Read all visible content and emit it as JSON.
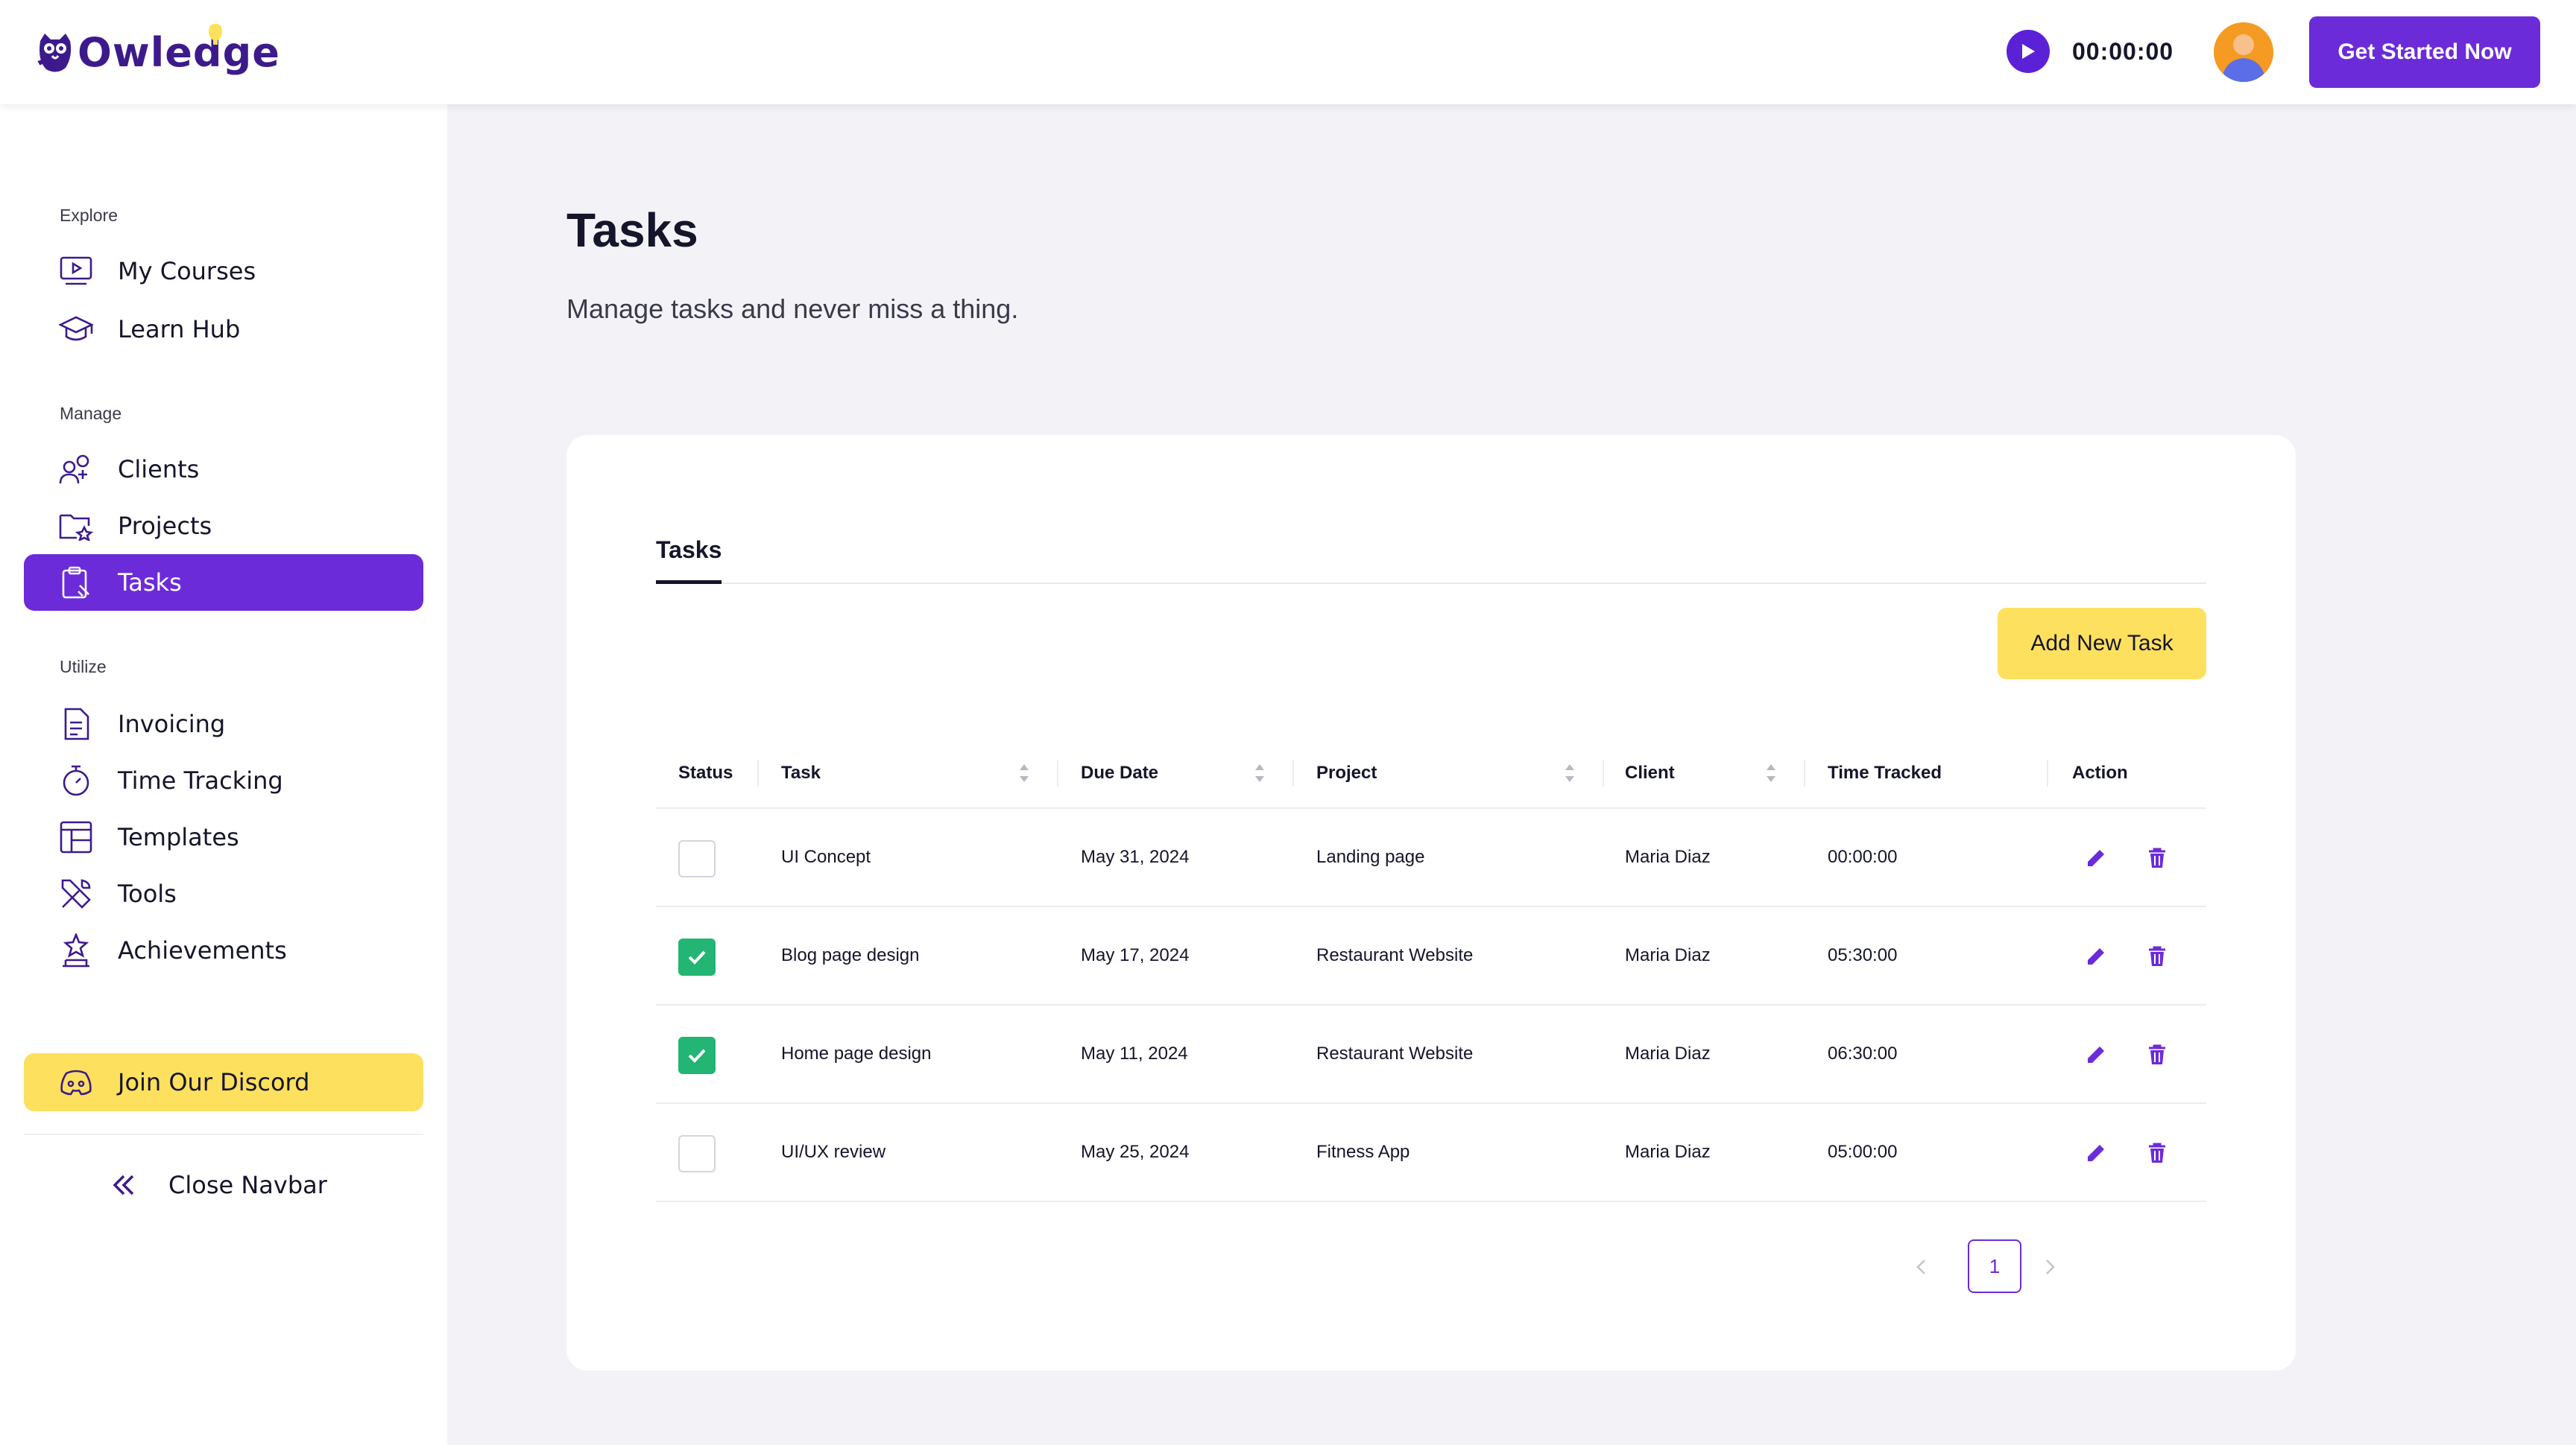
{
  "header": {
    "logo_text": "Owledge",
    "timer": "00:00:00",
    "cta_label": "Get Started Now"
  },
  "sidebar": {
    "sections": [
      {
        "title": "Explore",
        "items": [
          {
            "label": "My Courses",
            "icon": "play-screen-icon"
          },
          {
            "label": "Learn Hub",
            "icon": "graduation-cap-icon"
          }
        ]
      },
      {
        "title": "Manage",
        "items": [
          {
            "label": "Clients",
            "icon": "users-plus-icon"
          },
          {
            "label": "Projects",
            "icon": "folder-star-icon"
          },
          {
            "label": "Tasks",
            "icon": "clipboard-icon",
            "active": true
          }
        ]
      },
      {
        "title": "Utilize",
        "items": [
          {
            "label": "Invoicing",
            "icon": "document-icon"
          },
          {
            "label": "Time Tracking",
            "icon": "stopwatch-icon"
          },
          {
            "label": "Templates",
            "icon": "template-grid-icon"
          },
          {
            "label": "Tools",
            "icon": "tools-icon"
          },
          {
            "label": "Achievements",
            "icon": "trophy-star-icon"
          }
        ]
      }
    ],
    "discord_label": "Join Our Discord",
    "close_label": "Close Navbar"
  },
  "main": {
    "title": "Tasks",
    "subtitle": "Manage tasks and never miss a thing.",
    "tab_label": "Tasks",
    "add_button": "Add New Task",
    "columns": [
      "Status",
      "Task",
      "Due Date",
      "Project",
      "Client",
      "Time Tracked",
      "Action"
    ],
    "rows": [
      {
        "done": false,
        "task": "UI Concept",
        "due": "May 31, 2024",
        "project": "Landing page",
        "client": "Maria Diaz",
        "time": "00:00:00"
      },
      {
        "done": true,
        "task": "Blog page design",
        "due": "May 17, 2024",
        "project": "Restaurant Website",
        "client": "Maria Diaz",
        "time": "05:30:00"
      },
      {
        "done": true,
        "task": "Home page design",
        "due": "May 11, 2024",
        "project": "Restaurant Website",
        "client": "Maria Diaz",
        "time": "06:30:00"
      },
      {
        "done": false,
        "task": "UI/UX review",
        "due": "May 25, 2024",
        "project": "Fitness App",
        "client": "Maria Diaz",
        "time": "05:00:00"
      }
    ],
    "page": "1"
  },
  "colors": {
    "accent": "#6c2bd9",
    "highlight": "#fde05d",
    "success": "#22b573",
    "action_icon": "#6c2bd9"
  }
}
